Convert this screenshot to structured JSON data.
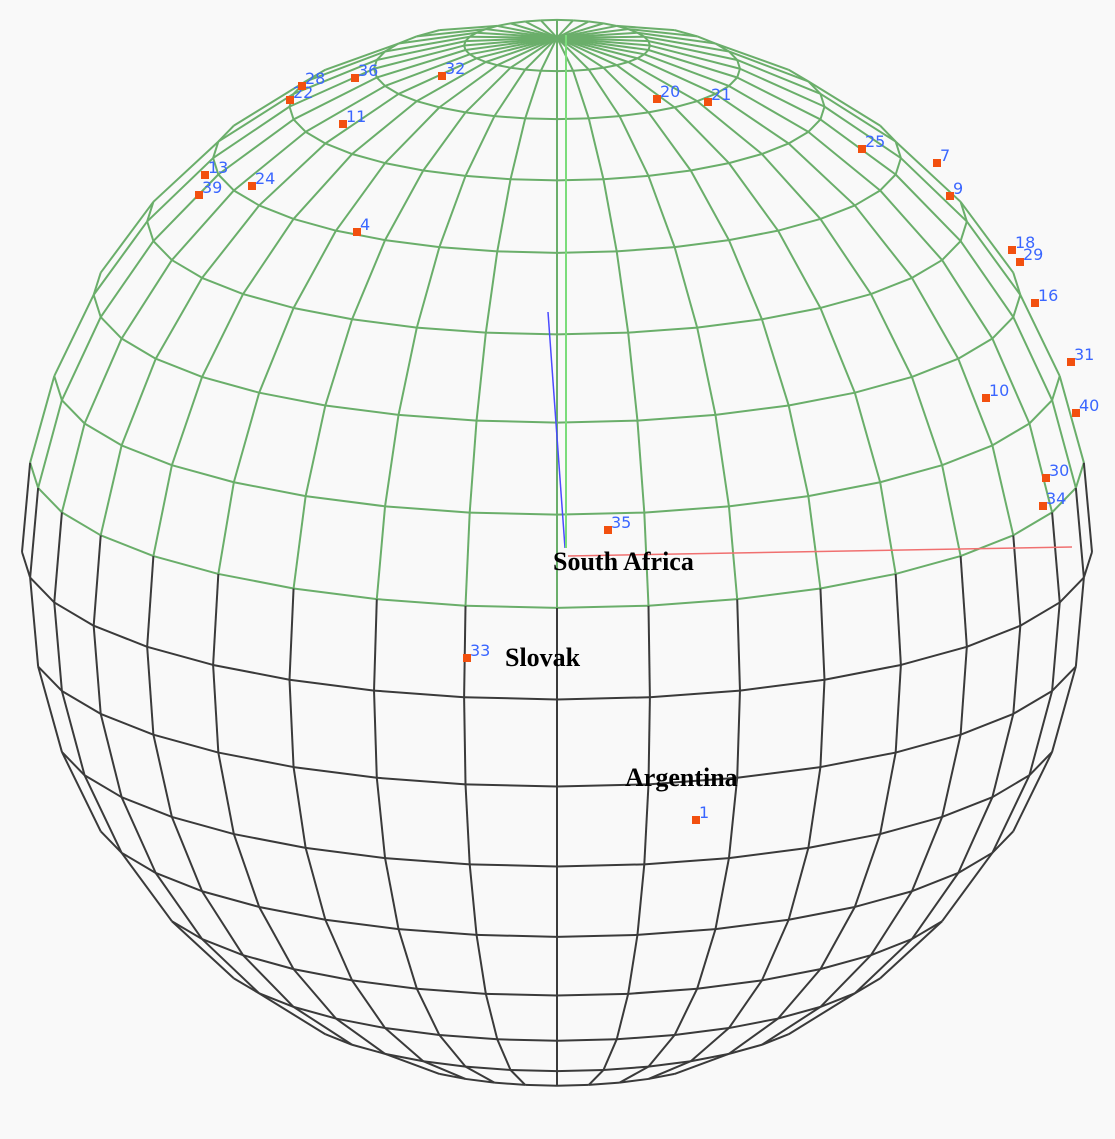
{
  "point_labels": [
    "1",
    "4",
    "7",
    "9",
    "10",
    "11",
    "13",
    "16",
    "18",
    "20",
    "21",
    "22",
    "24",
    "25",
    "28",
    "29",
    "30",
    "31",
    "32",
    "33",
    "34",
    "35",
    "36",
    "39",
    "40"
  ],
  "annotations": [
    "South Africa",
    "Slovak",
    "Argentina"
  ]
}
